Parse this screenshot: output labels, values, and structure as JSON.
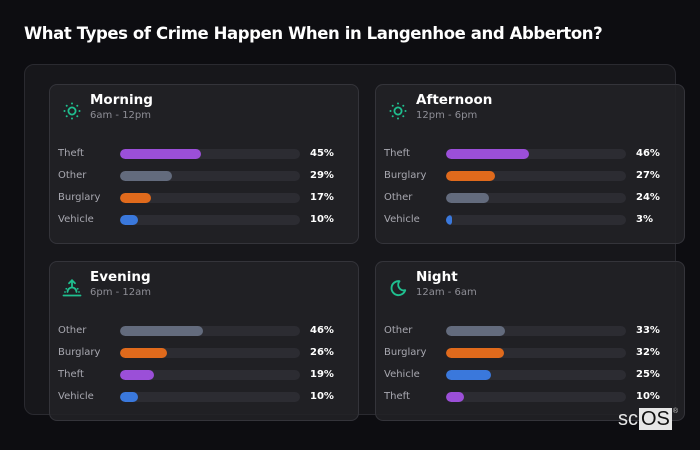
{
  "title": "What Types of Crime Happen When in Langenhoe and Abberton?",
  "colors": {
    "Theft": "#9b4fd8",
    "Other": "#636b7d",
    "Burglary": "#e06a1c",
    "Vehicle": "#3a78dc",
    "accent": "#1fbf8f",
    "track": "#2c2c32"
  },
  "cards": [
    {
      "name": "Morning",
      "range": "6am - 12pm",
      "icon": "sun-icon",
      "rows": [
        {
          "label": "Theft",
          "value": 45,
          "pct": "45%"
        },
        {
          "label": "Other",
          "value": 29,
          "pct": "29%"
        },
        {
          "label": "Burglary",
          "value": 17,
          "pct": "17%"
        },
        {
          "label": "Vehicle",
          "value": 10,
          "pct": "10%"
        }
      ]
    },
    {
      "name": "Afternoon",
      "range": "12pm - 6pm",
      "icon": "sun-icon",
      "rows": [
        {
          "label": "Theft",
          "value": 46,
          "pct": "46%"
        },
        {
          "label": "Burglary",
          "value": 27,
          "pct": "27%"
        },
        {
          "label": "Other",
          "value": 24,
          "pct": "24%"
        },
        {
          "label": "Vehicle",
          "value": 3,
          "pct": "3%"
        }
      ]
    },
    {
      "name": "Evening",
      "range": "6pm - 12am",
      "icon": "sunset-icon",
      "rows": [
        {
          "label": "Other",
          "value": 46,
          "pct": "46%"
        },
        {
          "label": "Burglary",
          "value": 26,
          "pct": "26%"
        },
        {
          "label": "Theft",
          "value": 19,
          "pct": "19%"
        },
        {
          "label": "Vehicle",
          "value": 10,
          "pct": "10%"
        }
      ]
    },
    {
      "name": "Night",
      "range": "12am - 6am",
      "icon": "moon-icon",
      "rows": [
        {
          "label": "Other",
          "value": 33,
          "pct": "33%"
        },
        {
          "label": "Burglary",
          "value": 32,
          "pct": "32%"
        },
        {
          "label": "Vehicle",
          "value": 25,
          "pct": "25%"
        },
        {
          "label": "Theft",
          "value": 10,
          "pct": "10%"
        }
      ]
    }
  ],
  "logo": {
    "sc": "sc",
    "os": "OS",
    "reg": "®"
  },
  "chart_data": [
    {
      "type": "bar",
      "orientation": "horizontal",
      "title": "Morning",
      "subtitle": "6am - 12pm",
      "categories": [
        "Theft",
        "Other",
        "Burglary",
        "Vehicle"
      ],
      "values": [
        45,
        29,
        17,
        10
      ],
      "unit": "%",
      "xlim": [
        0,
        100
      ],
      "grid": false,
      "legend": "none"
    },
    {
      "type": "bar",
      "orientation": "horizontal",
      "title": "Afternoon",
      "subtitle": "12pm - 6pm",
      "categories": [
        "Theft",
        "Burglary",
        "Other",
        "Vehicle"
      ],
      "values": [
        46,
        27,
        24,
        3
      ],
      "unit": "%",
      "xlim": [
        0,
        100
      ],
      "grid": false,
      "legend": "none"
    },
    {
      "type": "bar",
      "orientation": "horizontal",
      "title": "Evening",
      "subtitle": "6pm - 12am",
      "categories": [
        "Other",
        "Burglary",
        "Theft",
        "Vehicle"
      ],
      "values": [
        46,
        26,
        19,
        10
      ],
      "unit": "%",
      "xlim": [
        0,
        100
      ],
      "grid": false,
      "legend": "none"
    },
    {
      "type": "bar",
      "orientation": "horizontal",
      "title": "Night",
      "subtitle": "12am - 6am",
      "categories": [
        "Other",
        "Burglary",
        "Vehicle",
        "Theft"
      ],
      "values": [
        33,
        32,
        25,
        10
      ],
      "unit": "%",
      "xlim": [
        0,
        100
      ],
      "grid": false,
      "legend": "none"
    }
  ]
}
